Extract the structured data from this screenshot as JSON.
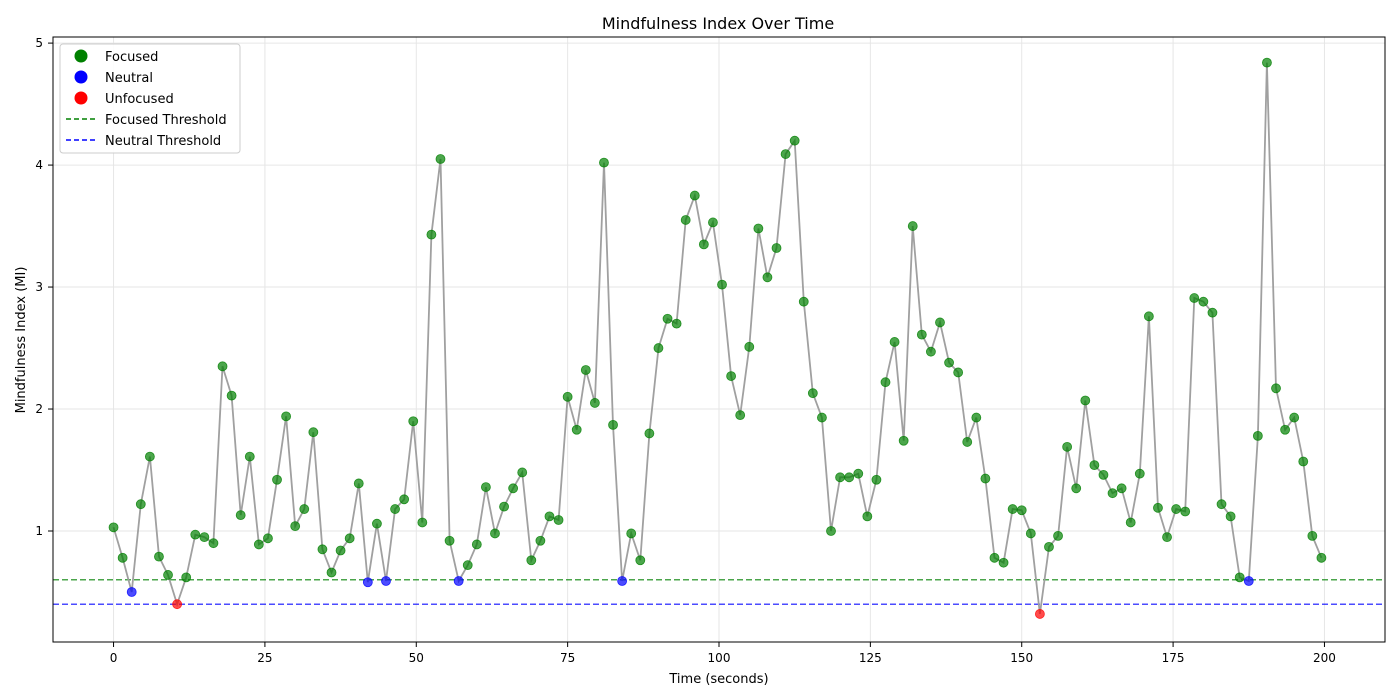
{
  "chart_data": {
    "type": "scatter",
    "title": "Mindfulness Index Over Time",
    "xlabel": "Time (seconds)",
    "ylabel": "Mindfulness Index (MI)",
    "xlim": [
      -10,
      210
    ],
    "ylim": [
      0.09,
      5.05
    ],
    "xticks": [
      0,
      25,
      50,
      75,
      100,
      125,
      150,
      175,
      200
    ],
    "yticks": [
      1,
      2,
      3,
      4,
      5
    ],
    "grid": true,
    "legend_position": "top-left",
    "line_color": "#a0a0a0",
    "x": [
      0,
      1.5,
      3,
      4.5,
      6,
      7.5,
      9,
      10.5,
      12,
      13.5,
      15,
      16.5,
      18,
      19.5,
      21,
      22.5,
      24,
      25.5,
      27,
      28.5,
      30,
      31.5,
      33,
      34.5,
      36,
      37.5,
      39,
      40.5,
      42,
      43.5,
      45,
      46.5,
      48,
      49.5,
      51,
      52.5,
      54,
      55.5,
      57,
      58.5,
      60,
      61.5,
      63,
      64.5,
      66,
      67.5,
      69,
      70.5,
      72,
      73.5,
      75,
      76.5,
      78,
      79.5,
      81,
      82.5,
      84,
      85.5,
      87,
      88.5,
      90,
      91.5,
      93,
      94.5,
      96,
      97.5,
      99,
      100.5,
      102,
      103.5,
      105,
      106.5,
      108,
      109.5,
      111,
      112.5,
      114,
      115.5,
      117,
      118.5,
      120,
      121.5,
      123,
      124.5,
      126,
      127.5,
      129,
      130.5,
      132,
      133.5,
      135,
      136.5,
      138,
      139.5,
      141,
      142.5,
      144,
      145.5,
      147,
      148.5,
      150,
      151.5,
      153,
      154.5,
      156,
      157.5,
      159,
      160.5,
      162,
      163.5,
      165,
      166.5,
      168,
      169.5,
      171,
      172.5,
      174,
      175.5,
      177,
      178.5,
      180,
      181.5,
      183,
      184.5,
      186,
      187.5,
      189,
      190.5,
      192,
      193.5,
      195,
      196.5,
      198,
      199.5
    ],
    "y": [
      1.03,
      0.78,
      0.5,
      1.22,
      1.61,
      0.79,
      0.64,
      0.4,
      0.62,
      0.97,
      0.95,
      0.9,
      2.35,
      2.11,
      1.13,
      1.61,
      0.89,
      0.94,
      1.42,
      1.94,
      1.04,
      1.18,
      1.81,
      0.85,
      0.66,
      0.84,
      0.94,
      1.39,
      0.58,
      1.06,
      0.59,
      1.18,
      1.26,
      1.9,
      1.07,
      3.43,
      4.05,
      0.92,
      0.59,
      0.72,
      0.89,
      1.36,
      0.98,
      1.2,
      1.35,
      1.48,
      0.76,
      0.92,
      1.12,
      1.09,
      2.1,
      1.83,
      2.32,
      2.05,
      4.02,
      1.87,
      0.59,
      0.98,
      0.76,
      1.8,
      2.5,
      2.74,
      2.7,
      3.55,
      3.75,
      3.35,
      3.53,
      3.02,
      2.27,
      1.95,
      2.51,
      3.48,
      3.08,
      3.32,
      4.09,
      4.2,
      2.88,
      2.13,
      1.93,
      1.0,
      1.44,
      1.44,
      1.47,
      1.12,
      1.42,
      2.22,
      2.55,
      1.74,
      3.5,
      2.61,
      2.47,
      2.71,
      2.38,
      2.3,
      1.73,
      1.93,
      1.43,
      0.78,
      0.74,
      1.18,
      1.17,
      0.98,
      0.32,
      0.87,
      0.96,
      1.69,
      1.35,
      2.07,
      1.54,
      1.46,
      1.31,
      1.35,
      1.07,
      1.47,
      2.76,
      1.19,
      0.95,
      1.18,
      1.16,
      2.91,
      2.88,
      2.79,
      1.22,
      1.12,
      0.62,
      0.59,
      1.78,
      4.84,
      2.17,
      1.83,
      1.93,
      1.57,
      0.96,
      0.78
    ],
    "states": [
      "F",
      "F",
      "N",
      "F",
      "F",
      "F",
      "F",
      "U",
      "F",
      "F",
      "F",
      "F",
      "F",
      "F",
      "F",
      "F",
      "F",
      "F",
      "F",
      "F",
      "F",
      "F",
      "F",
      "F",
      "F",
      "F",
      "F",
      "F",
      "N",
      "F",
      "N",
      "F",
      "F",
      "F",
      "F",
      "F",
      "F",
      "F",
      "N",
      "F",
      "F",
      "F",
      "F",
      "F",
      "F",
      "F",
      "F",
      "F",
      "F",
      "F",
      "F",
      "F",
      "F",
      "F",
      "F",
      "F",
      "N",
      "F",
      "F",
      "F",
      "F",
      "F",
      "F",
      "F",
      "F",
      "F",
      "F",
      "F",
      "F",
      "F",
      "F",
      "F",
      "F",
      "F",
      "F",
      "F",
      "F",
      "F",
      "F",
      "F",
      "F",
      "F",
      "F",
      "F",
      "F",
      "F",
      "F",
      "F",
      "F",
      "F",
      "F",
      "F",
      "F",
      "F",
      "F",
      "F",
      "F",
      "F",
      "F",
      "F",
      "F",
      "F",
      "U",
      "F",
      "F",
      "F",
      "F",
      "F",
      "F",
      "F",
      "F",
      "F",
      "F",
      "F",
      "F",
      "F",
      "F",
      "F",
      "F",
      "F",
      "F",
      "F",
      "F",
      "F",
      "F",
      "N",
      "F",
      "F",
      "F",
      "F",
      "F",
      "F",
      "F",
      "F"
    ],
    "categories": [
      {
        "key": "F",
        "name": "Focused",
        "color": "#008000"
      },
      {
        "key": "N",
        "name": "Neutral",
        "color": "#0000ff"
      },
      {
        "key": "U",
        "name": "Unfocused",
        "color": "#ff0000"
      }
    ],
    "thresholds": [
      {
        "name": "Focused Threshold",
        "value": 0.6,
        "color": "#008000"
      },
      {
        "name": "Neutral Threshold",
        "value": 0.4,
        "color": "#0000ff"
      }
    ]
  }
}
